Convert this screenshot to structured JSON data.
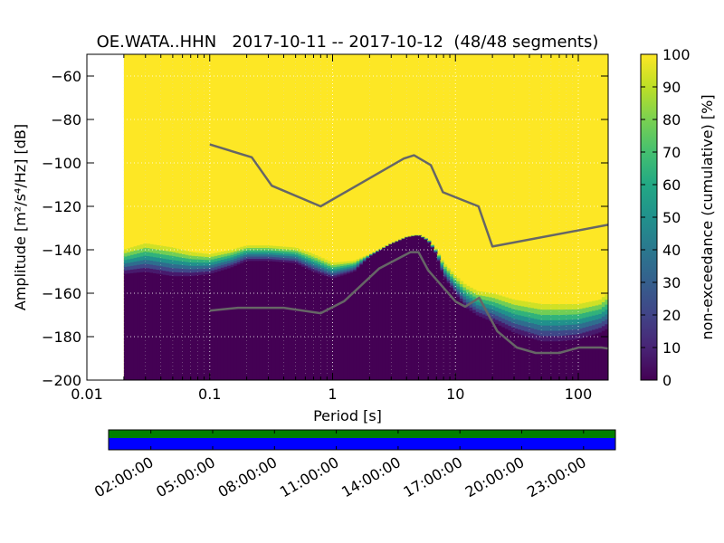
{
  "chart_data": [
    {
      "type": "heatmap",
      "title": "OE.WATA..HHN   2017-10-11 -- 2017-10-12  (48/48 segments)",
      "xlabel": "Period [s]",
      "ylabel": "Amplitude [m²/s⁴/Hz] [dB]",
      "xscale": "log",
      "xlim": [
        0.01,
        175
      ],
      "ylim": [
        -200,
        -50
      ],
      "x_ticks": [
        {
          "value": 0.01,
          "label": "0.01"
        },
        {
          "value": 0.1,
          "label": "0.1"
        },
        {
          "value": 1,
          "label": "1"
        },
        {
          "value": 10,
          "label": "10"
        },
        {
          "value": 100,
          "label": "100"
        }
      ],
      "y_ticks": [
        {
          "value": -60,
          "label": "−60"
        },
        {
          "value": -80,
          "label": "−80"
        },
        {
          "value": -100,
          "label": "−100"
        },
        {
          "value": -120,
          "label": "−120"
        },
        {
          "value": -140,
          "label": "−140"
        },
        {
          "value": -160,
          "label": "−160"
        },
        {
          "value": -180,
          "label": "−180"
        },
        {
          "value": -200,
          "label": "−200"
        }
      ],
      "data_start_period": 0.02,
      "psd_bands": {
        "period": [
          0.02,
          0.03,
          0.05,
          0.07,
          0.1,
          0.15,
          0.2,
          0.3,
          0.5,
          0.7,
          1.0,
          1.5,
          2.0,
          3.0,
          4.0,
          5.0,
          6.0,
          7.0,
          8.0,
          10.0,
          12.0,
          15.0,
          20.0,
          30.0,
          50.0,
          70.0,
          100.0,
          150.0,
          175.0
        ],
        "yellow_lower_db": [
          -140,
          -137,
          -139,
          -141,
          -142,
          -140,
          -138,
          -138,
          -139,
          -142,
          -146,
          -145,
          -142,
          -137,
          -134,
          -133,
          -135,
          -140,
          -146,
          -152,
          -156,
          -159,
          -160,
          -163,
          -165,
          -165,
          -165,
          -163,
          -160
        ],
        "purple_upper_db": [
          -151,
          -150,
          -152,
          -152,
          -151,
          -148,
          -145,
          -145,
          -146,
          -150,
          -153,
          -150,
          -143,
          -137,
          -134,
          -133,
          -136,
          -142,
          -152,
          -160,
          -166,
          -170,
          -173,
          -178,
          -182,
          -182,
          -181,
          -178,
          -176
        ]
      },
      "noise_models": [
        {
          "name": "high noise model",
          "x": [
            0.1,
            0.22,
            0.32,
            0.8,
            3.8,
            4.6,
            6.3,
            7.9,
            15.4,
            20,
            175
          ],
          "y": [
            -91.5,
            -97.4,
            -110.5,
            -120,
            -98,
            -96.5,
            -101,
            -113.5,
            -120,
            -138.5,
            -128.5
          ]
        },
        {
          "name": "low noise model",
          "x": [
            0.1,
            0.17,
            0.4,
            0.8,
            1.24,
            2.4,
            4.3,
            5.0,
            6.0,
            10,
            12,
            15.6,
            21.9,
            31.6,
            45,
            70,
            101,
            154,
            175
          ],
          "y": [
            -168,
            -166.7,
            -166.7,
            -169.2,
            -163.7,
            -148.6,
            -141.1,
            -141.1,
            -149.4,
            -163.8,
            -166.2,
            -162.1,
            -177.5,
            -185,
            -187.5,
            -187.5,
            -185,
            -185,
            -185.5
          ]
        }
      ],
      "colorbar": {
        "label": "non-exceedance (cumulative) [%]",
        "range": [
          0,
          100
        ],
        "ticks": [
          "0",
          "10",
          "20",
          "30",
          "40",
          "50",
          "60",
          "70",
          "80",
          "90",
          "100"
        ]
      }
    },
    {
      "type": "timeline",
      "tick_labels": [
        "02:00:00",
        "05:00:00",
        "08:00:00",
        "11:00:00",
        "14:00:00",
        "17:00:00",
        "20:00:00",
        "23:00:00"
      ],
      "colors": {
        "data_available": "#008000",
        "psd_used": "#0000ff"
      }
    }
  ]
}
